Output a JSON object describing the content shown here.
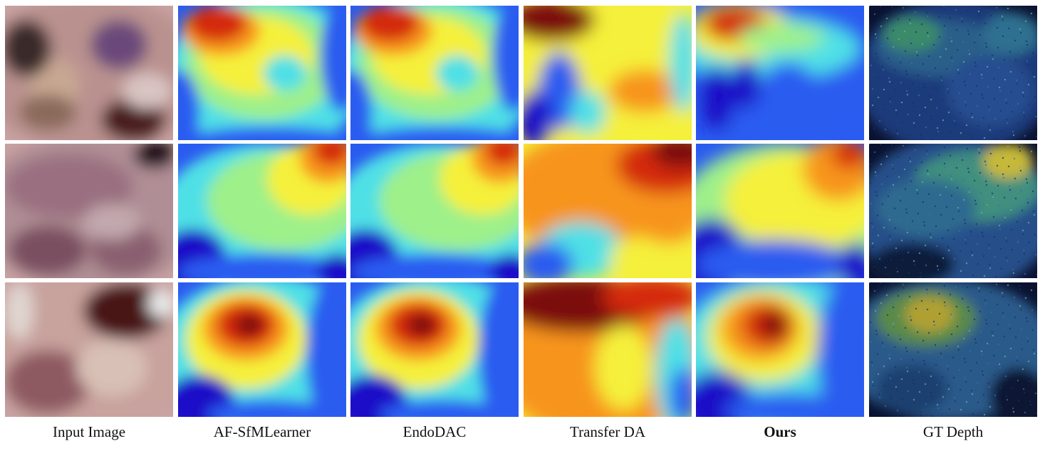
{
  "figure": {
    "columns": [
      {
        "id": "input",
        "label": "Input Image",
        "bold": false
      },
      {
        "id": "afsfm",
        "label": "AF-SfMLearner",
        "bold": false
      },
      {
        "id": "endodac",
        "label": "EndoDAC",
        "bold": false
      },
      {
        "id": "transferda",
        "label": "Transfer DA",
        "bold": false
      },
      {
        "id": "ours",
        "label": "Ours",
        "bold": true
      },
      {
        "id": "gt",
        "label": "GT Depth",
        "bold": false
      }
    ],
    "rows": 3,
    "colors": {
      "jet_dark_blue": "#1a10c8",
      "jet_blue": "#2a5bf0",
      "jet_cyan": "#4fe0e6",
      "jet_green": "#9ef08a",
      "jet_yellow": "#f5f03a",
      "jet_orange": "#f7941d",
      "jet_red": "#d42a10",
      "jet_dark_red": "#7c0a0a",
      "tissue_pink": "#c9a3a3",
      "tissue_dark": "#5a1f24",
      "pointcloud_dark": "#0a1230"
    }
  }
}
